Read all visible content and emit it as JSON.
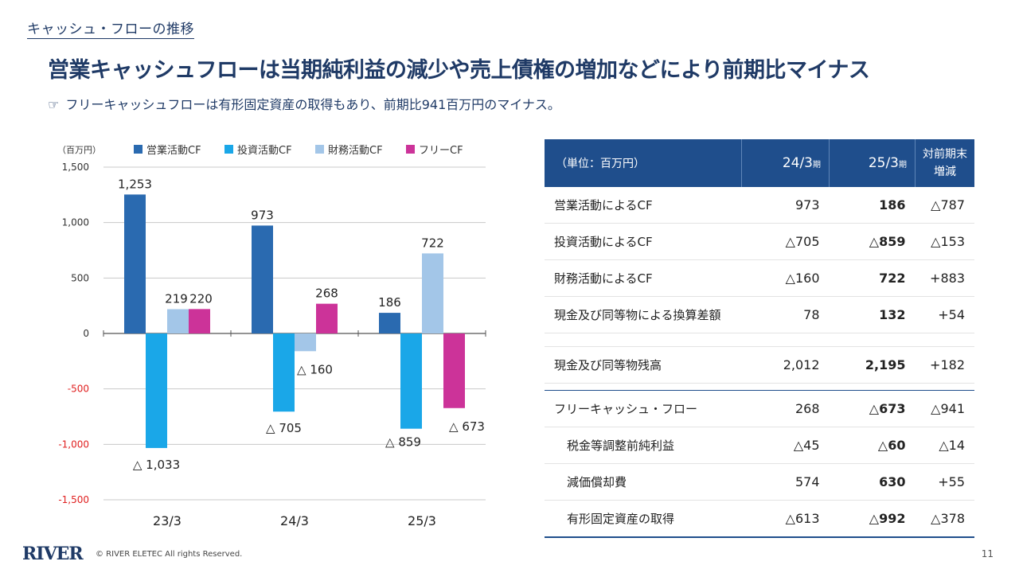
{
  "header": {
    "section_title": "キャッシュ・フローの推移",
    "headline": "営業キャッシュフローは当期純利益の減少や売上債権の増加などにより前期比マイナス",
    "subline_icon": "pointing-hand-icon",
    "subline": "フリーキャッシュフローは有形固定資産の取得もあり、前期比941百万円のマイナス。"
  },
  "chart_data": {
    "type": "bar",
    "unit_label": "（百万円）",
    "categories": [
      "23/3",
      "24/3",
      "25/3"
    ],
    "ylim": [
      -1500,
      1500
    ],
    "yticks": [
      {
        "value": 1500,
        "label": "1,500"
      },
      {
        "value": 1000,
        "label": "1,000"
      },
      {
        "value": 500,
        "label": "500"
      },
      {
        "value": 0,
        "label": "0"
      },
      {
        "value": -500,
        "label": "-500"
      },
      {
        "value": -1000,
        "label": "-1,000"
      },
      {
        "value": -1500,
        "label": "-1,500"
      }
    ],
    "negative_tick_color": "#e02020",
    "grid": true,
    "legend_position": "top",
    "series": [
      {
        "name": "営業活動CF",
        "color": "#2a6ab0",
        "values": [
          1253,
          973,
          186
        ],
        "labels": [
          "1,253",
          "973",
          "186"
        ]
      },
      {
        "name": "投資活動CF",
        "color": "#1aa7e8",
        "values": [
          -1033,
          -705,
          -859
        ],
        "labels": [
          "△ 1,033",
          "△ 705",
          "△ 859"
        ]
      },
      {
        "name": "財務活動CF",
        "color": "#a3c6e8",
        "values": [
          219,
          -160,
          722
        ],
        "labels": [
          "219",
          "△ 160",
          "722"
        ]
      },
      {
        "name": "フリーCF",
        "color": "#cc3399",
        "values": [
          220,
          268,
          -673
        ],
        "labels": [
          "220",
          "268",
          "△ 673"
        ]
      }
    ]
  },
  "table": {
    "header": {
      "unit": "（単位：百万円）",
      "col1": "24/3",
      "col2": "25/3",
      "period": "期",
      "diff_line1": "対前期末",
      "diff_line2": "増減"
    },
    "rows": [
      {
        "label": "営業活動によるCF",
        "v1": "973",
        "v2": "186",
        "d": "△787"
      },
      {
        "label": "投資活動によるCF",
        "v1": "△705",
        "v2": "△859",
        "d": "△153"
      },
      {
        "label": "財務活動によるCF",
        "v1": "△160",
        "v2": "722",
        "d": "+883"
      },
      {
        "label": "現金及び同等物による換算差額",
        "v1": "78",
        "v2": "132",
        "d": "+54"
      },
      {
        "label": "現金及び同等物残高",
        "v1": "2,012",
        "v2": "2,195",
        "d": "+182"
      },
      {
        "label": "フリーキャッシュ・フロー",
        "v1": "268",
        "v2": "△673",
        "d": "△941"
      },
      {
        "label": "税金等調整前純利益",
        "v1": "△45",
        "v2": "△60",
        "d": "△14"
      },
      {
        "label": "減価償却費",
        "v1": "574",
        "v2": "630",
        "d": "+55"
      },
      {
        "label": "有形固定資産の取得",
        "v1": "△613",
        "v2": "△992",
        "d": "△378"
      }
    ]
  },
  "footer": {
    "logo": "RIVER",
    "copyright": "© RIVER ELETEC All rights Reserved.",
    "page": "11"
  }
}
